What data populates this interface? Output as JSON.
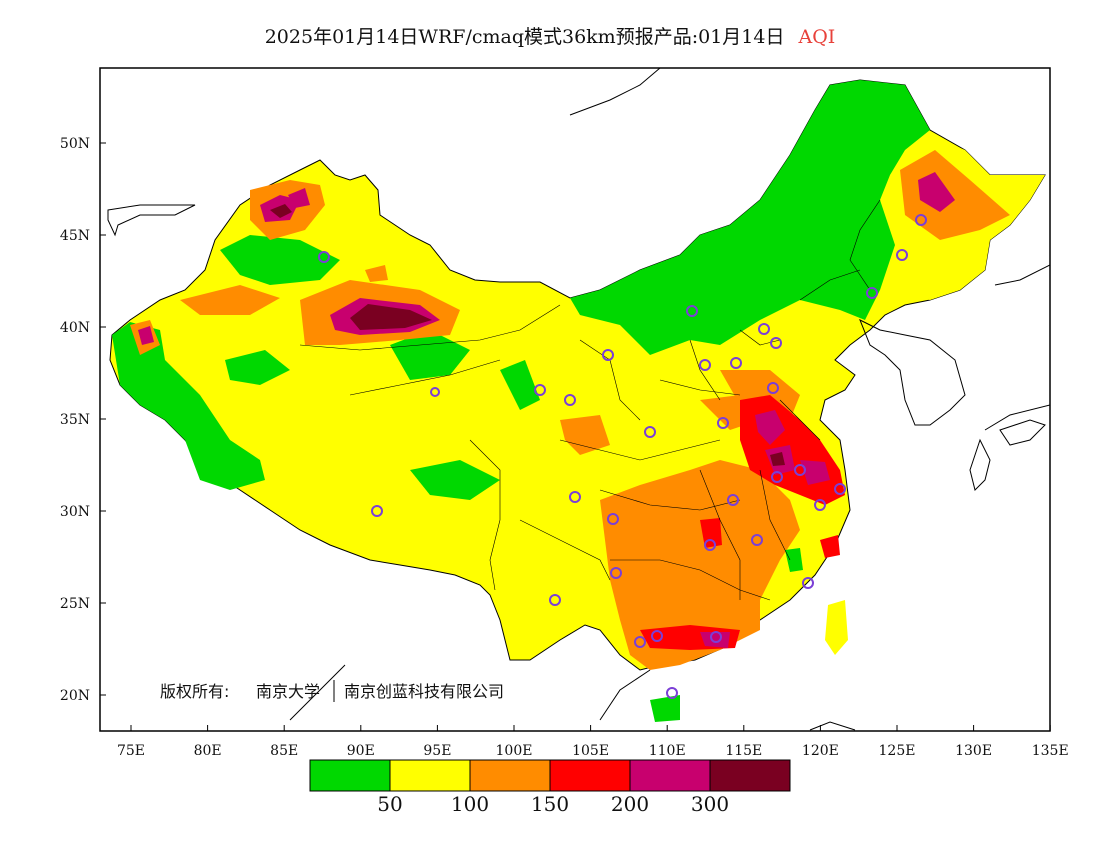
{
  "title": {
    "main": "2025年01月14日WRF/cmaq模式36km预报产品:01月14日",
    "variable": "AQI"
  },
  "copyright": {
    "prefix": "版权所有:",
    "org1": "南京大学",
    "org2": "南京创蓝科技有限公司"
  },
  "axes": {
    "lon_labels": [
      "75E",
      "80E",
      "85E",
      "90E",
      "95E",
      "100E",
      "105E",
      "110E",
      "115E",
      "120E",
      "125E",
      "130E",
      "135E"
    ],
    "lat_labels": [
      "50N",
      "45N",
      "40N",
      "35N",
      "30N",
      "25N",
      "20N"
    ]
  },
  "colorbar": {
    "colors": [
      "#00d800",
      "#ffff00",
      "#ff8c00",
      "#ff0000",
      "#c8006e",
      "#7a0021"
    ],
    "labels": [
      "50",
      "100",
      "150",
      "200",
      "300"
    ]
  },
  "palette": {
    "good": "#00d800",
    "moderate": "#ffff00",
    "usg": "#ff8c00",
    "unhealthy": "#ff0000",
    "very_unhealthy": "#c8006e",
    "hazardous": "#7a0021",
    "station_ring": "#7b3fd6"
  }
}
